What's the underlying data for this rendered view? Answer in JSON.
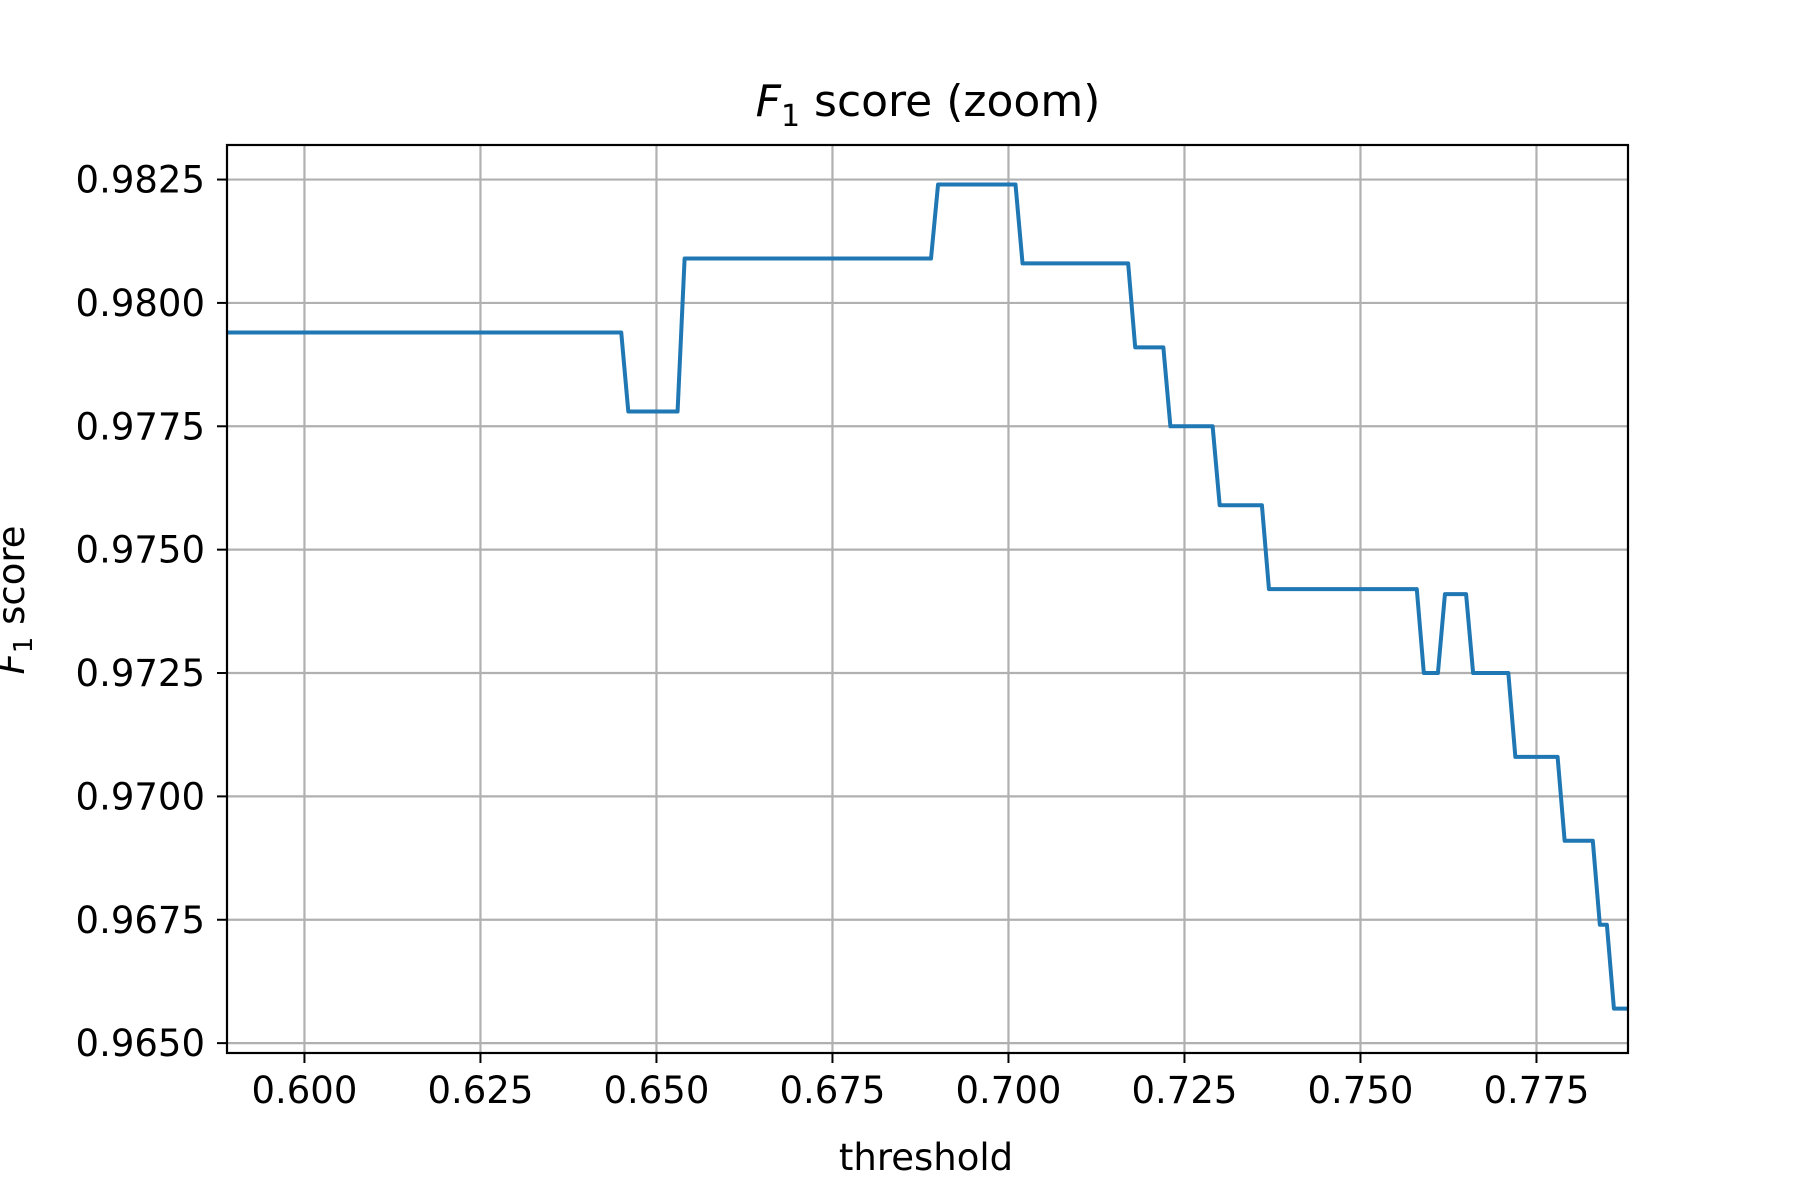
{
  "chart_data": {
    "type": "line",
    "title": {
      "var": "F",
      "sub": "1",
      "rest": " score (zoom)"
    },
    "xlabel": "threshold",
    "ylabel": {
      "var": "F",
      "sub": "1",
      "rest": " score"
    },
    "xlim": [
      0.589,
      0.788
    ],
    "ylim": [
      0.9648,
      0.9832
    ],
    "x_ticks": [
      {
        "value": 0.6,
        "label": "0.600"
      },
      {
        "value": 0.625,
        "label": "0.625"
      },
      {
        "value": 0.65,
        "label": "0.650"
      },
      {
        "value": 0.675,
        "label": "0.675"
      },
      {
        "value": 0.7,
        "label": "0.700"
      },
      {
        "value": 0.725,
        "label": "0.725"
      },
      {
        "value": 0.75,
        "label": "0.750"
      },
      {
        "value": 0.775,
        "label": "0.775"
      }
    ],
    "y_ticks": [
      {
        "value": 0.965,
        "label": "0.9650"
      },
      {
        "value": 0.9675,
        "label": "0.9675"
      },
      {
        "value": 0.97,
        "label": "0.9700"
      },
      {
        "value": 0.9725,
        "label": "0.9725"
      },
      {
        "value": 0.975,
        "label": "0.9750"
      },
      {
        "value": 0.9775,
        "label": "0.9775"
      },
      {
        "value": 0.98,
        "label": "0.9800"
      },
      {
        "value": 0.9825,
        "label": "0.9825"
      }
    ],
    "grid": true,
    "legend": false,
    "line_color": "#1f77b4",
    "series": [
      {
        "x": [
          0.589,
          0.645,
          0.646,
          0.653,
          0.654,
          0.689,
          0.69,
          0.694,
          0.695,
          0.701,
          0.702,
          0.717,
          0.718,
          0.722,
          0.723,
          0.729,
          0.73,
          0.736,
          0.737,
          0.758,
          0.759,
          0.761,
          0.762,
          0.765,
          0.766,
          0.771,
          0.772,
          0.778,
          0.779,
          0.783,
          0.784,
          0.785,
          0.786,
          0.788
        ],
        "y": [
          0.9794,
          0.9794,
          0.9778,
          0.9778,
          0.9809,
          0.9809,
          0.9824,
          0.9824,
          0.9824,
          0.9824,
          0.9808,
          0.9808,
          0.9791,
          0.9791,
          0.9775,
          0.9775,
          0.9759,
          0.9759,
          0.9742,
          0.9742,
          0.9725,
          0.9725,
          0.9741,
          0.9741,
          0.9725,
          0.9725,
          0.9708,
          0.9708,
          0.9691,
          0.9691,
          0.9674,
          0.9674,
          0.9657,
          0.9657
        ]
      }
    ]
  }
}
